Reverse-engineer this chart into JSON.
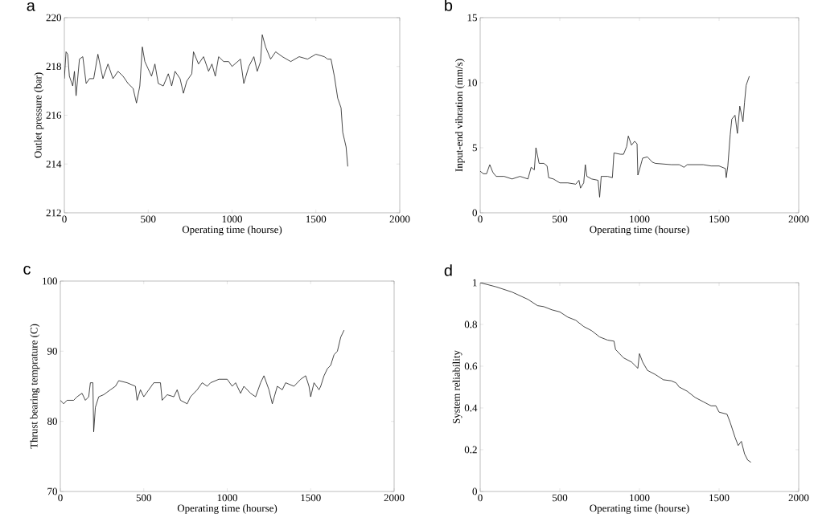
{
  "chart_data": [
    {
      "type": "line",
      "title": "a",
      "xlabel": "Operating time (hourse)",
      "ylabel": "Outlet pressure (bar)",
      "color": "#1a1a1a",
      "xlim": [
        0,
        2000
      ],
      "ylim": [
        212,
        220
      ],
      "xticks": [
        0,
        500,
        1000,
        1500,
        2000
      ],
      "yticks": [
        212,
        214,
        216,
        218,
        220
      ],
      "x": [
        0,
        10,
        20,
        30,
        50,
        60,
        70,
        90,
        110,
        130,
        150,
        175,
        200,
        230,
        260,
        290,
        320,
        350,
        380,
        410,
        430,
        450,
        465,
        480,
        500,
        520,
        540,
        560,
        590,
        620,
        640,
        660,
        690,
        710,
        730,
        760,
        770,
        800,
        830,
        860,
        880,
        900,
        920,
        950,
        980,
        1000,
        1050,
        1070,
        1100,
        1130,
        1150,
        1170,
        1180,
        1200,
        1230,
        1260,
        1300,
        1350,
        1400,
        1450,
        1500,
        1550,
        1570,
        1590,
        1610,
        1630,
        1650,
        1660,
        1670,
        1680,
        1690
      ],
      "values": [
        217.5,
        218.6,
        218.5,
        217.6,
        217.2,
        217.8,
        216.8,
        218.3,
        218.4,
        217.3,
        217.5,
        217.5,
        218.5,
        217.5,
        218.1,
        217.5,
        217.8,
        217.6,
        217.3,
        217.1,
        216.5,
        217.2,
        218.8,
        218.2,
        217.9,
        217.6,
        218.1,
        217.3,
        217.2,
        217.7,
        217.2,
        217.8,
        217.5,
        216.9,
        217.4,
        217.7,
        218.6,
        218.1,
        218.4,
        217.8,
        218.1,
        217.6,
        218.4,
        218.2,
        218.2,
        218.0,
        218.3,
        217.3,
        218.0,
        218.4,
        217.8,
        218.2,
        219.3,
        218.8,
        218.3,
        218.6,
        218.4,
        218.2,
        218.4,
        218.3,
        218.5,
        218.4,
        218.3,
        218.3,
        217.6,
        216.7,
        216.3,
        215.3,
        215.0,
        214.7,
        213.9
      ]
    },
    {
      "type": "line",
      "title": "b",
      "xlabel": "Operating time (hourse)",
      "ylabel": "Input-end vibration (mm/s)",
      "color": "#1a1a1a",
      "xlim": [
        0,
        2000
      ],
      "ylim": [
        0,
        15
      ],
      "xticks": [
        0,
        500,
        1000,
        1500,
        2000
      ],
      "yticks": [
        0,
        5,
        10,
        15
      ],
      "x": [
        0,
        20,
        40,
        60,
        80,
        100,
        150,
        200,
        250,
        300,
        320,
        340,
        350,
        370,
        400,
        420,
        430,
        460,
        500,
        550,
        600,
        620,
        630,
        650,
        660,
        670,
        700,
        740,
        750,
        760,
        800,
        830,
        840,
        880,
        900,
        920,
        930,
        950,
        970,
        985,
        990,
        1000,
        1020,
        1050,
        1080,
        1100,
        1200,
        1250,
        1280,
        1300,
        1400,
        1450,
        1500,
        1540,
        1545,
        1555,
        1570,
        1580,
        1600,
        1615,
        1630,
        1650,
        1660,
        1670,
        1690
      ],
      "values": [
        3.2,
        3.0,
        3.0,
        3.7,
        3.1,
        2.8,
        2.8,
        2.6,
        2.8,
        2.6,
        3.5,
        3.3,
        5.0,
        3.8,
        3.8,
        3.6,
        2.7,
        2.6,
        2.3,
        2.3,
        2.2,
        2.5,
        1.9,
        2.3,
        3.7,
        2.8,
        2.6,
        2.5,
        1.2,
        2.8,
        2.8,
        2.7,
        4.6,
        4.5,
        4.5,
        5.1,
        5.9,
        5.2,
        5.5,
        5.3,
        2.9,
        3.3,
        4.2,
        4.3,
        3.9,
        3.8,
        3.7,
        3.7,
        3.5,
        3.7,
        3.7,
        3.6,
        3.6,
        3.4,
        2.7,
        3.6,
        6.0,
        7.2,
        7.5,
        6.1,
        8.2,
        7.0,
        8.5,
        9.8,
        10.5
      ]
    },
    {
      "type": "line",
      "title": "c",
      "xlabel": "Operating time (hourse)",
      "ylabel": "Thrust bearing temprature (C)",
      "color": "#1a1a1a",
      "xlim": [
        0,
        2000
      ],
      "ylim": [
        70,
        100
      ],
      "xticks": [
        0,
        500,
        1000,
        1500,
        2000
      ],
      "yticks": [
        70,
        80,
        90,
        100
      ],
      "x": [
        0,
        20,
        40,
        80,
        100,
        130,
        150,
        170,
        180,
        195,
        200,
        210,
        230,
        260,
        300,
        330,
        350,
        400,
        450,
        460,
        480,
        500,
        530,
        560,
        600,
        610,
        640,
        680,
        700,
        720,
        760,
        780,
        820,
        850,
        880,
        900,
        950,
        1000,
        1030,
        1050,
        1080,
        1100,
        1140,
        1170,
        1200,
        1220,
        1250,
        1270,
        1300,
        1330,
        1350,
        1400,
        1440,
        1470,
        1490,
        1500,
        1520,
        1550,
        1560,
        1580,
        1600,
        1620,
        1640,
        1660,
        1680,
        1700
      ],
      "values": [
        83,
        82.5,
        83,
        83,
        83.5,
        84,
        83,
        83.5,
        85.5,
        85.5,
        78.5,
        82,
        83.5,
        83.8,
        84.5,
        85,
        85.8,
        85.5,
        85,
        83,
        84.5,
        83.5,
        84.5,
        85.5,
        85.5,
        83,
        83.8,
        83.5,
        84.5,
        83,
        82.5,
        83.5,
        84.5,
        85.5,
        85,
        85.5,
        86,
        86,
        85,
        85.5,
        84,
        85,
        84,
        83.5,
        85.5,
        86.5,
        84.5,
        82.5,
        85,
        84.5,
        85.5,
        85,
        86,
        86.5,
        85,
        83.5,
        85.5,
        84.5,
        85,
        86.5,
        87.5,
        88,
        89.5,
        90,
        92,
        93
      ]
    },
    {
      "type": "line",
      "title": "d",
      "xlabel": "Operating time (hourse)",
      "ylabel": "System reliability",
      "color": "#1a1a1a",
      "xlim": [
        0,
        2000
      ],
      "ylim": [
        0,
        1
      ],
      "xticks": [
        0,
        500,
        1000,
        1500,
        2000
      ],
      "yticks": [
        0,
        0.2,
        0.4,
        0.6,
        0.8,
        1
      ],
      "x": [
        0,
        100,
        200,
        300,
        360,
        400,
        450,
        500,
        550,
        600,
        650,
        700,
        750,
        800,
        840,
        850,
        900,
        950,
        990,
        1000,
        1020,
        1050,
        1100,
        1150,
        1200,
        1230,
        1250,
        1300,
        1350,
        1400,
        1450,
        1480,
        1500,
        1550,
        1570,
        1600,
        1620,
        1640,
        1660,
        1680,
        1700
      ],
      "values": [
        1.0,
        0.98,
        0.955,
        0.92,
        0.89,
        0.885,
        0.87,
        0.86,
        0.835,
        0.82,
        0.79,
        0.77,
        0.74,
        0.725,
        0.72,
        0.68,
        0.64,
        0.62,
        0.59,
        0.66,
        0.62,
        0.58,
        0.56,
        0.535,
        0.53,
        0.52,
        0.5,
        0.48,
        0.45,
        0.43,
        0.41,
        0.41,
        0.38,
        0.37,
        0.33,
        0.26,
        0.22,
        0.24,
        0.18,
        0.15,
        0.14
      ]
    }
  ]
}
